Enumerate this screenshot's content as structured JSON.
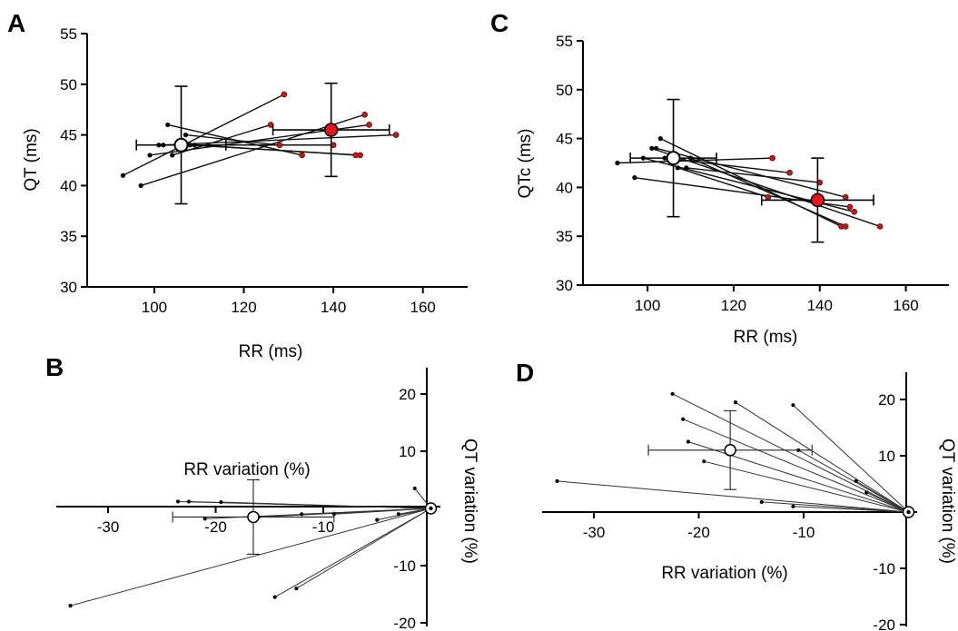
{
  "figure": {
    "title": ""
  },
  "chart_data": [
    {
      "panel": "A",
      "type": "scatter",
      "xlabel": "RR (ms)",
      "ylabel": "QT (ms)",
      "xlim": [
        85,
        170
      ],
      "ylim": [
        30,
        55
      ],
      "xticks": [
        100,
        120,
        140,
        160
      ],
      "yticks": [
        30,
        35,
        40,
        45,
        50,
        55
      ],
      "pairs": [
        [
          [
            93,
            41
          ],
          [
            129,
            49
          ]
        ],
        [
          [
            97,
            40
          ],
          [
            147,
            47
          ]
        ],
        [
          [
            99,
            43
          ],
          [
            148,
            46
          ]
        ],
        [
          [
            101,
            44
          ],
          [
            140,
            44
          ]
        ],
        [
          [
            102,
            44
          ],
          [
            154,
            45
          ]
        ],
        [
          [
            103,
            46
          ],
          [
            133,
            43
          ]
        ],
        [
          [
            104,
            43
          ],
          [
            126,
            46
          ]
        ],
        [
          [
            107,
            45
          ],
          [
            128,
            44
          ]
        ],
        [
          [
            108,
            44
          ],
          [
            146,
            43
          ]
        ],
        [
          [
            109,
            44
          ],
          [
            145,
            43
          ]
        ]
      ],
      "mean_before": {
        "x": 106,
        "y": 44,
        "x_err": 10,
        "y_err": 5.8
      },
      "mean_after": {
        "x": 139.5,
        "y": 45.5,
        "x_err": 13,
        "y_err": 4.6
      }
    },
    {
      "panel": "B",
      "type": "scatter",
      "xlabel": "RR variation (%)",
      "ylabel": "QT variation (%)",
      "xlim": [
        -35,
        1
      ],
      "ylim": [
        -20,
        23
      ],
      "xticks": [
        -30,
        -20,
        -10
      ],
      "yticks": [
        -20,
        -10,
        10,
        20
      ],
      "points": [
        [
          -33.5,
          -17
        ],
        [
          -23.5,
          1.2
        ],
        [
          -22.5,
          1.2
        ],
        [
          -21,
          -1.8
        ],
        [
          -19.5,
          1.1
        ],
        [
          -16,
          -1.5
        ],
        [
          -14.5,
          -15.5
        ],
        [
          -12.5,
          -14
        ],
        [
          -12,
          -1
        ],
        [
          -9,
          -1
        ],
        [
          -5,
          -2
        ],
        [
          -3,
          -1
        ],
        [
          -1.5,
          3.5
        ],
        [
          -0.3,
          0.1
        ]
      ],
      "mean": {
        "x": -16.5,
        "y": -1.5,
        "x_err": 7.5,
        "y_err": 6.5
      }
    },
    {
      "panel": "C",
      "type": "scatter",
      "xlabel": "RR (ms)",
      "ylabel": "QTc (ms)",
      "xlim": [
        85,
        170
      ],
      "ylim": [
        30,
        55
      ],
      "xticks": [
        100,
        120,
        140,
        160
      ],
      "yticks": [
        30,
        35,
        40,
        45,
        50,
        55
      ],
      "pairs": [
        [
          [
            93,
            42.5
          ],
          [
            129,
            43
          ]
        ],
        [
          [
            97,
            41
          ],
          [
            147,
            38
          ]
        ],
        [
          [
            99,
            43
          ],
          [
            148,
            37.5
          ]
        ],
        [
          [
            101,
            44
          ],
          [
            154,
            36
          ]
        ],
        [
          [
            102,
            44
          ],
          [
            146,
            39
          ]
        ],
        [
          [
            103,
            45
          ],
          [
            145,
            36
          ]
        ],
        [
          [
            104,
            43
          ],
          [
            133,
            41.5
          ]
        ],
        [
          [
            107,
            42
          ],
          [
            128,
            39
          ]
        ],
        [
          [
            109,
            42
          ],
          [
            140,
            40.5
          ]
        ],
        [
          [
            110,
            43
          ],
          [
            146,
            36
          ]
        ]
      ],
      "mean_before": {
        "x": 106,
        "y": 43,
        "x_err": 10,
        "y_err": 6
      },
      "mean_after": {
        "x": 139.5,
        "y": 38.7,
        "x_err": 13,
        "y_err": 4.3
      }
    },
    {
      "panel": "D",
      "type": "scatter",
      "xlabel": "RR variation (%)",
      "ylabel": "QT variation (%)",
      "xlim": [
        -36,
        1
      ],
      "ylim": [
        -20,
        25
      ],
      "xticks": [
        -30,
        -20,
        -10
      ],
      "yticks": [
        -20,
        -10,
        10,
        20
      ],
      "points": [
        [
          -33.5,
          5.5
        ],
        [
          -22.5,
          21
        ],
        [
          -21.5,
          16.5
        ],
        [
          -21,
          12.5
        ],
        [
          -19.5,
          9
        ],
        [
          -16.5,
          19.5
        ],
        [
          -14,
          1.8
        ],
        [
          -11,
          19
        ],
        [
          -11,
          1
        ],
        [
          -10.5,
          11
        ],
        [
          -5,
          5.5
        ],
        [
          -4,
          3.5
        ],
        [
          -0.3,
          0.1
        ]
      ],
      "mean": {
        "x": -17,
        "y": 11,
        "x_err": 7.8,
        "y_err": 7
      }
    }
  ]
}
